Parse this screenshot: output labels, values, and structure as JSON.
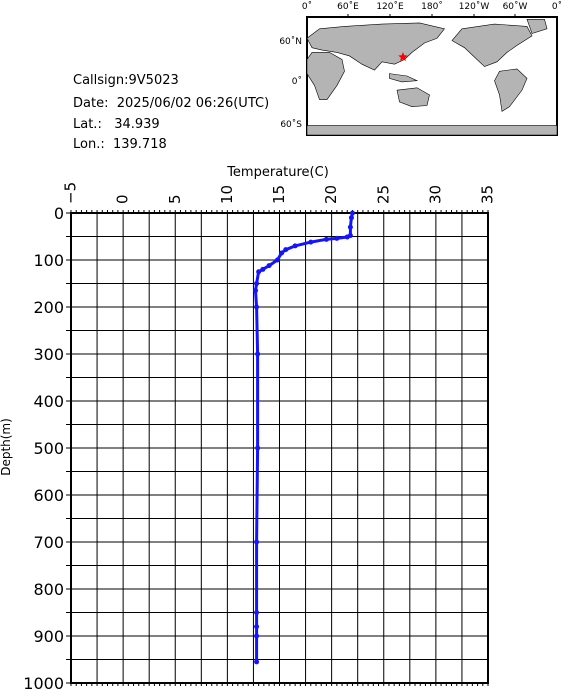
{
  "info": {
    "callsign": "Callsign:9V5023",
    "date": "Date:  2025/06/02 06:26(UTC)",
    "lat": "Lat.:   34.939",
    "lon": "Lon.:  139.718"
  },
  "map": {
    "top_labels": [
      "0˚",
      "60˚E",
      "120˚E",
      "180˚",
      "120˚W",
      "60˚W",
      "0˚"
    ],
    "left_labels": [
      "60˚N",
      "0˚",
      "60˚S"
    ],
    "marker_color": "#ff0000",
    "land_color": "#b4b4b4",
    "ocean_color": "#ffffff"
  },
  "chart_data": {
    "type": "line",
    "title": "Temperature(C)",
    "xlabel": "Temperature(C)",
    "ylabel": "Depth(m)",
    "xlim": [
      -5,
      35
    ],
    "ylim": [
      1000,
      0
    ],
    "x_ticks": [
      -5,
      0,
      5,
      10,
      15,
      20,
      25,
      30,
      35
    ],
    "y_ticks": [
      0,
      100,
      200,
      300,
      400,
      500,
      600,
      700,
      800,
      900,
      1000
    ],
    "grid": true,
    "series_color": "#1414ff",
    "series": [
      {
        "x": [
          22.0,
          21.9,
          21.8,
          21.8,
          21.5,
          20.5,
          19.5,
          18.0,
          16.5,
          15.6,
          15.2,
          14.8,
          14.0,
          13.4,
          13.0,
          12.8,
          12.7,
          12.8,
          12.9,
          12.9,
          12.8,
          12.8,
          12.8,
          12.8,
          12.8
        ],
        "y": [
          0,
          10,
          30,
          48,
          51,
          54,
          56,
          62,
          70,
          78,
          85,
          100,
          112,
          120,
          125,
          150,
          165,
          200,
          300,
          500,
          700,
          850,
          880,
          900,
          955
        ]
      }
    ]
  }
}
